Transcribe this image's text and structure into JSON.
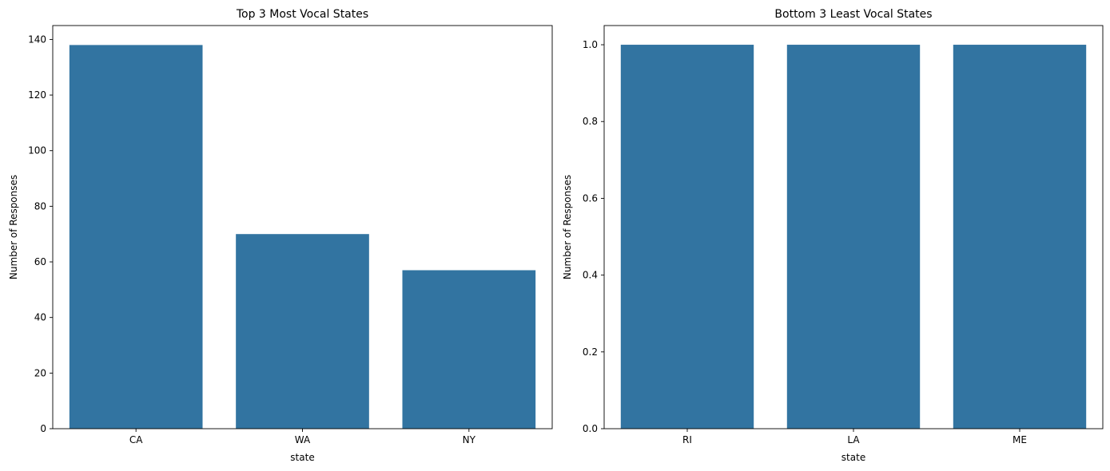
{
  "chart_data": [
    {
      "type": "bar",
      "title": "Top 3 Most Vocal States",
      "xlabel": "state",
      "ylabel": "Number of Responses",
      "categories": [
        "CA",
        "WA",
        "NY"
      ],
      "values": [
        138,
        70,
        57
      ],
      "ylim": [
        0,
        145
      ],
      "yticks": [
        0,
        20,
        40,
        60,
        80,
        100,
        120,
        140
      ],
      "ytick_labels": [
        "0",
        "20",
        "40",
        "60",
        "80",
        "100",
        "120",
        "140"
      ],
      "grid": false,
      "color": "#3274a1"
    },
    {
      "type": "bar",
      "title": "Bottom 3 Least Vocal States",
      "xlabel": "state",
      "ylabel": "Number of Responses",
      "categories": [
        "RI",
        "LA",
        "ME"
      ],
      "values": [
        1,
        1,
        1
      ],
      "ylim": [
        0,
        1.05
      ],
      "yticks": [
        0,
        0.2,
        0.4,
        0.6,
        0.8,
        1.0
      ],
      "ytick_labels": [
        "0.0",
        "0.2",
        "0.4",
        "0.6",
        "0.8",
        "1.0"
      ],
      "grid": false,
      "color": "#3274a1"
    }
  ]
}
